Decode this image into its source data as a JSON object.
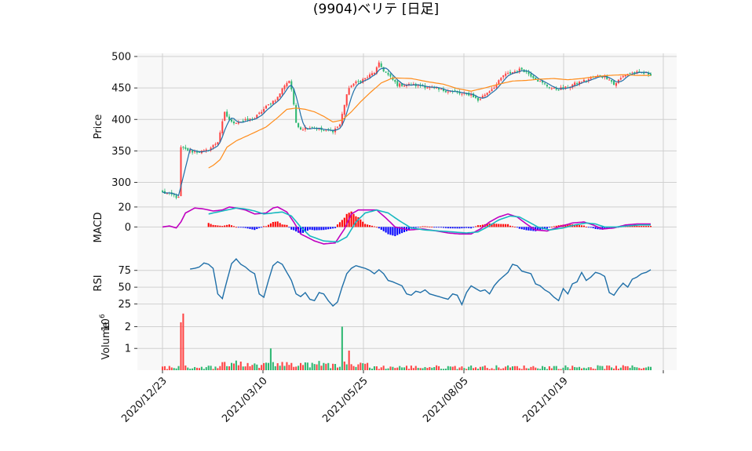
{
  "title": "(9904)ベリテ [日足]",
  "chart_data": {
    "type": "candlestick",
    "x_ticks": [
      "2020/12/23",
      "2021/03/10",
      "2021/05/25",
      "2021/08/05",
      "2021/10/19"
    ],
    "panels": {
      "price": {
        "ylabel": "Price",
        "ylim": [
          272,
          505
        ],
        "yticks": [
          300,
          350,
          400,
          450,
          500
        ],
        "ytick_labels": [
          "300",
          "350",
          "400",
          "450",
          "500"
        ],
        "close_anchors": [
          [
            0,
            284
          ],
          [
            5,
            279
          ],
          [
            7,
            275
          ],
          [
            8,
            355
          ],
          [
            10,
            352
          ],
          [
            13,
            349
          ],
          [
            18,
            349
          ],
          [
            20,
            352
          ],
          [
            24,
            365
          ],
          [
            27,
            410
          ],
          [
            30,
            395
          ],
          [
            36,
            398
          ],
          [
            40,
            402
          ],
          [
            45,
            420
          ],
          [
            50,
            435
          ],
          [
            53,
            455
          ],
          [
            55,
            462
          ],
          [
            56,
            448
          ],
          [
            58,
            395
          ],
          [
            60,
            385
          ],
          [
            65,
            388
          ],
          [
            70,
            382
          ],
          [
            74,
            382
          ],
          [
            77,
            392
          ],
          [
            80,
            440
          ],
          [
            82,
            455
          ],
          [
            85,
            460
          ],
          [
            88,
            465
          ],
          [
            92,
            475
          ],
          [
            94,
            488
          ],
          [
            96,
            478
          ],
          [
            98,
            470
          ],
          [
            102,
            455
          ],
          [
            108,
            455
          ],
          [
            115,
            452
          ],
          [
            120,
            447
          ],
          [
            125,
            445
          ],
          [
            130,
            440
          ],
          [
            134,
            440
          ],
          [
            137,
            430
          ],
          [
            140,
            440
          ],
          [
            145,
            455
          ],
          [
            148,
            470
          ],
          [
            152,
            475
          ],
          [
            156,
            480
          ],
          [
            160,
            470
          ],
          [
            163,
            462
          ],
          [
            166,
            455
          ],
          [
            170,
            448
          ],
          [
            175,
            450
          ],
          [
            178,
            455
          ],
          [
            182,
            460
          ],
          [
            186,
            465
          ],
          [
            190,
            470
          ],
          [
            194,
            465
          ],
          [
            196,
            455
          ],
          [
            198,
            462
          ],
          [
            201,
            472
          ],
          [
            204,
            474
          ],
          [
            208,
            474
          ],
          [
            212,
            472
          ]
        ],
        "ma_long_anchors": [
          [
            20,
            323
          ],
          [
            22,
            327
          ],
          [
            25,
            336
          ],
          [
            28,
            356
          ],
          [
            32,
            366
          ],
          [
            38,
            376
          ],
          [
            45,
            388
          ],
          [
            50,
            403
          ],
          [
            54,
            416
          ],
          [
            58,
            418
          ],
          [
            62,
            416
          ],
          [
            66,
            412
          ],
          [
            70,
            405
          ],
          [
            74,
            396
          ],
          [
            78,
            399
          ],
          [
            82,
            412
          ],
          [
            86,
            428
          ],
          [
            90,
            442
          ],
          [
            95,
            458
          ],
          [
            100,
            466
          ],
          [
            108,
            465
          ],
          [
            115,
            460
          ],
          [
            122,
            456
          ],
          [
            128,
            449
          ],
          [
            134,
            445
          ],
          [
            140,
            450
          ],
          [
            146,
            456
          ],
          [
            152,
            461
          ],
          [
            158,
            462
          ],
          [
            164,
            464
          ],
          [
            170,
            465
          ],
          [
            176,
            463
          ],
          [
            182,
            465
          ],
          [
            188,
            468
          ],
          [
            194,
            470
          ],
          [
            200,
            471
          ],
          [
            206,
            470
          ],
          [
            212,
            470
          ]
        ],
        "colors": {
          "up": "#ff4444",
          "down": "#2eb872",
          "ma_short": "#1f6fa8",
          "ma_long": "#ff8c1a"
        }
      },
      "macd": {
        "ylabel": "MACD",
        "ylim": [
          -28,
          27
        ],
        "yticks": [
          0,
          20
        ],
        "ytick_labels": [
          "0",
          "20"
        ],
        "macd_anchors": [
          [
            0,
            0
          ],
          [
            3,
            1
          ],
          [
            6,
            -1
          ],
          [
            8,
            5
          ],
          [
            10,
            14
          ],
          [
            14,
            19
          ],
          [
            18,
            18
          ],
          [
            22,
            16
          ],
          [
            26,
            17
          ],
          [
            29,
            20
          ],
          [
            32,
            19
          ],
          [
            36,
            17
          ],
          [
            40,
            13
          ],
          [
            45,
            14
          ],
          [
            48,
            19
          ],
          [
            50,
            20
          ],
          [
            54,
            15
          ],
          [
            57,
            5
          ],
          [
            60,
            -7
          ],
          [
            66,
            -14
          ],
          [
            70,
            -17
          ],
          [
            75,
            -16
          ],
          [
            79,
            -2
          ],
          [
            82,
            13
          ],
          [
            85,
            17
          ],
          [
            88,
            17
          ],
          [
            93,
            17
          ],
          [
            97,
            9
          ],
          [
            101,
            0
          ],
          [
            107,
            -3
          ],
          [
            113,
            -2
          ],
          [
            119,
            -4
          ],
          [
            124,
            -6
          ],
          [
            129,
            -7
          ],
          [
            134,
            -7
          ],
          [
            138,
            -2
          ],
          [
            142,
            5
          ],
          [
            146,
            10
          ],
          [
            150,
            13
          ],
          [
            154,
            10
          ],
          [
            158,
            3
          ],
          [
            162,
            -3
          ],
          [
            167,
            -4
          ],
          [
            172,
            0
          ],
          [
            178,
            4
          ],
          [
            183,
            5
          ],
          [
            187,
            2
          ],
          [
            191,
            -2
          ],
          [
            196,
            -1
          ],
          [
            201,
            2
          ],
          [
            206,
            3
          ],
          [
            212,
            3
          ]
        ],
        "signal_anchors": [
          [
            20,
            13
          ],
          [
            24,
            15
          ],
          [
            28,
            17
          ],
          [
            32,
            19
          ],
          [
            36,
            18
          ],
          [
            40,
            16
          ],
          [
            44,
            13
          ],
          [
            48,
            14
          ],
          [
            52,
            15
          ],
          [
            56,
            11
          ],
          [
            60,
            0
          ],
          [
            64,
            -9
          ],
          [
            70,
            -14
          ],
          [
            76,
            -15
          ],
          [
            80,
            -10
          ],
          [
            84,
            5
          ],
          [
            88,
            14
          ],
          [
            93,
            17
          ],
          [
            98,
            14
          ],
          [
            103,
            6
          ],
          [
            108,
            -1
          ],
          [
            114,
            -3
          ],
          [
            120,
            -4
          ],
          [
            126,
            -5
          ],
          [
            132,
            -6
          ],
          [
            137,
            -5
          ],
          [
            141,
            0
          ],
          [
            146,
            7
          ],
          [
            151,
            11
          ],
          [
            155,
            10
          ],
          [
            159,
            5
          ],
          [
            163,
            0
          ],
          [
            168,
            -3
          ],
          [
            174,
            -1
          ],
          [
            179,
            2
          ],
          [
            184,
            4
          ],
          [
            188,
            3
          ],
          [
            192,
            0
          ],
          [
            197,
            0
          ],
          [
            202,
            1
          ],
          [
            207,
            2
          ],
          [
            212,
            2
          ]
        ],
        "colors": {
          "macd": "#c000c0",
          "signal": "#18b8c0",
          "hist_pos": "#ff0000",
          "hist_neg": "#0000ff"
        }
      },
      "rsi": {
        "ylabel": "RSI",
        "ylim": [
          14,
          98
        ],
        "yticks": [
          25,
          50,
          75
        ],
        "ytick_labels": [
          "25",
          "50",
          "75"
        ],
        "rsi_anchors": [
          [
            12,
            77
          ],
          [
            14,
            78
          ],
          [
            16,
            80
          ],
          [
            18,
            86
          ],
          [
            20,
            84
          ],
          [
            22,
            78
          ],
          [
            24,
            40
          ],
          [
            26,
            33
          ],
          [
            28,
            60
          ],
          [
            30,
            85
          ],
          [
            32,
            92
          ],
          [
            34,
            84
          ],
          [
            36,
            80
          ],
          [
            38,
            74
          ],
          [
            40,
            70
          ],
          [
            42,
            40
          ],
          [
            44,
            35
          ],
          [
            46,
            60
          ],
          [
            48,
            82
          ],
          [
            50,
            88
          ],
          [
            52,
            84
          ],
          [
            54,
            72
          ],
          [
            56,
            60
          ],
          [
            58,
            40
          ],
          [
            60,
            36
          ],
          [
            62,
            42
          ],
          [
            64,
            32
          ],
          [
            66,
            30
          ],
          [
            68,
            42
          ],
          [
            70,
            40
          ],
          [
            72,
            30
          ],
          [
            74,
            22
          ],
          [
            76,
            28
          ],
          [
            78,
            50
          ],
          [
            80,
            70
          ],
          [
            82,
            78
          ],
          [
            84,
            82
          ],
          [
            86,
            80
          ],
          [
            88,
            78
          ],
          [
            90,
            75
          ],
          [
            92,
            70
          ],
          [
            94,
            76
          ],
          [
            96,
            70
          ],
          [
            98,
            60
          ],
          [
            100,
            58
          ],
          [
            102,
            55
          ],
          [
            104,
            52
          ],
          [
            106,
            40
          ],
          [
            108,
            38
          ],
          [
            110,
            44
          ],
          [
            112,
            42
          ],
          [
            114,
            46
          ],
          [
            116,
            40
          ],
          [
            118,
            38
          ],
          [
            120,
            36
          ],
          [
            122,
            34
          ],
          [
            124,
            32
          ],
          [
            126,
            40
          ],
          [
            128,
            38
          ],
          [
            130,
            24
          ],
          [
            132,
            42
          ],
          [
            134,
            52
          ],
          [
            136,
            48
          ],
          [
            138,
            44
          ],
          [
            140,
            46
          ],
          [
            142,
            40
          ],
          [
            144,
            52
          ],
          [
            146,
            60
          ],
          [
            148,
            66
          ],
          [
            150,
            72
          ],
          [
            152,
            84
          ],
          [
            154,
            82
          ],
          [
            156,
            74
          ],
          [
            158,
            72
          ],
          [
            160,
            70
          ],
          [
            162,
            55
          ],
          [
            164,
            52
          ],
          [
            166,
            46
          ],
          [
            168,
            42
          ],
          [
            170,
            35
          ],
          [
            172,
            30
          ],
          [
            174,
            48
          ],
          [
            176,
            40
          ],
          [
            178,
            55
          ],
          [
            180,
            58
          ],
          [
            182,
            72
          ],
          [
            184,
            60
          ],
          [
            186,
            65
          ],
          [
            188,
            72
          ],
          [
            190,
            70
          ],
          [
            192,
            66
          ],
          [
            194,
            42
          ],
          [
            196,
            38
          ],
          [
            198,
            48
          ],
          [
            200,
            56
          ],
          [
            202,
            50
          ],
          [
            204,
            62
          ],
          [
            206,
            65
          ],
          [
            208,
            70
          ],
          [
            210,
            72
          ],
          [
            212,
            76
          ]
        ],
        "color": "#1f6fa8"
      },
      "volume": {
        "ylabel": "Volume",
        "exponent_label": "10",
        "exponent": "6",
        "ylim": [
          0,
          2.7
        ],
        "yticks": [
          1,
          2
        ],
        "ytick_labels": [
          "1",
          "2"
        ],
        "spikes": [
          [
            8,
            2.2
          ],
          [
            9,
            2.6
          ],
          [
            47,
            1.0
          ],
          [
            78,
            2.0
          ],
          [
            81,
            0.9
          ]
        ],
        "colors": {
          "up": "#ff4444",
          "down": "#2eb872"
        }
      }
    },
    "n_days": 213,
    "grid": true
  }
}
